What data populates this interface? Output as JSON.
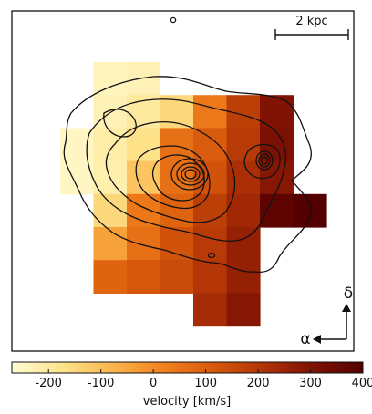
{
  "chart_data": {
    "type": "heatmap",
    "title": "",
    "grid": false,
    "scale_bar": {
      "label": "2 kpc"
    },
    "orientation": {
      "north_label": "δ",
      "east_label": "α"
    },
    "colorbar": {
      "label": "velocity [km/s]",
      "vmin": -270,
      "vmax": 400,
      "ticks": [
        -200,
        -100,
        0,
        100,
        200,
        300,
        400
      ],
      "tick_labels": [
        "-200",
        "-100",
        "0",
        "100",
        "200",
        "300",
        "400"
      ],
      "placement": "bottom",
      "colormap": [
        "#fffbd2",
        "#fde48c",
        "#fbb64e",
        "#f2821e",
        "#d85a0c",
        "#b03306",
        "#7e1204",
        "#540000"
      ]
    },
    "grid_columns": 8,
    "grid_rows": 9,
    "pixels": [
      {
        "col": 1,
        "row": 0,
        "value": -240
      },
      {
        "col": 2,
        "row": 0,
        "value": -230
      },
      {
        "col": 1,
        "row": 1,
        "value": -230
      },
      {
        "col": 2,
        "row": 1,
        "value": -200
      },
      {
        "col": 3,
        "row": 1,
        "value": -150
      },
      {
        "col": 4,
        "row": 1,
        "value": 40
      },
      {
        "col": 5,
        "row": 1,
        "value": 180
      },
      {
        "col": 6,
        "row": 1,
        "value": 300
      },
      {
        "col": 0,
        "row": 2,
        "value": -250
      },
      {
        "col": 1,
        "row": 2,
        "value": -210
      },
      {
        "col": 2,
        "row": 2,
        "value": -170
      },
      {
        "col": 3,
        "row": 2,
        "value": 60
      },
      {
        "col": 4,
        "row": 2,
        "value": 110
      },
      {
        "col": 5,
        "row": 2,
        "value": 190
      },
      {
        "col": 6,
        "row": 2,
        "value": 310
      },
      {
        "col": 0,
        "row": 3,
        "value": -250
      },
      {
        "col": 1,
        "row": 3,
        "value": -220
      },
      {
        "col": 2,
        "row": 3,
        "value": -110
      },
      {
        "col": 3,
        "row": 3,
        "value": 60
      },
      {
        "col": 4,
        "row": 3,
        "value": 130
      },
      {
        "col": 5,
        "row": 3,
        "value": 220
      },
      {
        "col": 6,
        "row": 3,
        "value": 290
      },
      {
        "col": 1,
        "row": 4,
        "value": -150
      },
      {
        "col": 2,
        "row": 4,
        "value": 40
      },
      {
        "col": 3,
        "row": 4,
        "value": 90
      },
      {
        "col": 4,
        "row": 4,
        "value": 180
      },
      {
        "col": 5,
        "row": 4,
        "value": 240
      },
      {
        "col": 6,
        "row": 4,
        "value": 380
      },
      {
        "col": 7,
        "row": 4,
        "value": 400
      },
      {
        "col": 1,
        "row": 5,
        "value": -40
      },
      {
        "col": 2,
        "row": 5,
        "value": 60
      },
      {
        "col": 3,
        "row": 5,
        "value": 130
      },
      {
        "col": 4,
        "row": 5,
        "value": 190
      },
      {
        "col": 5,
        "row": 5,
        "value": 260
      },
      {
        "col": 1,
        "row": 6,
        "value": 90
      },
      {
        "col": 2,
        "row": 6,
        "value": 120
      },
      {
        "col": 3,
        "row": 6,
        "value": 150
      },
      {
        "col": 4,
        "row": 6,
        "value": 200
      },
      {
        "col": 5,
        "row": 6,
        "value": 260
      },
      {
        "col": 4,
        "row": 7,
        "value": 230
      },
      {
        "col": 5,
        "row": 7,
        "value": 290
      }
    ]
  }
}
